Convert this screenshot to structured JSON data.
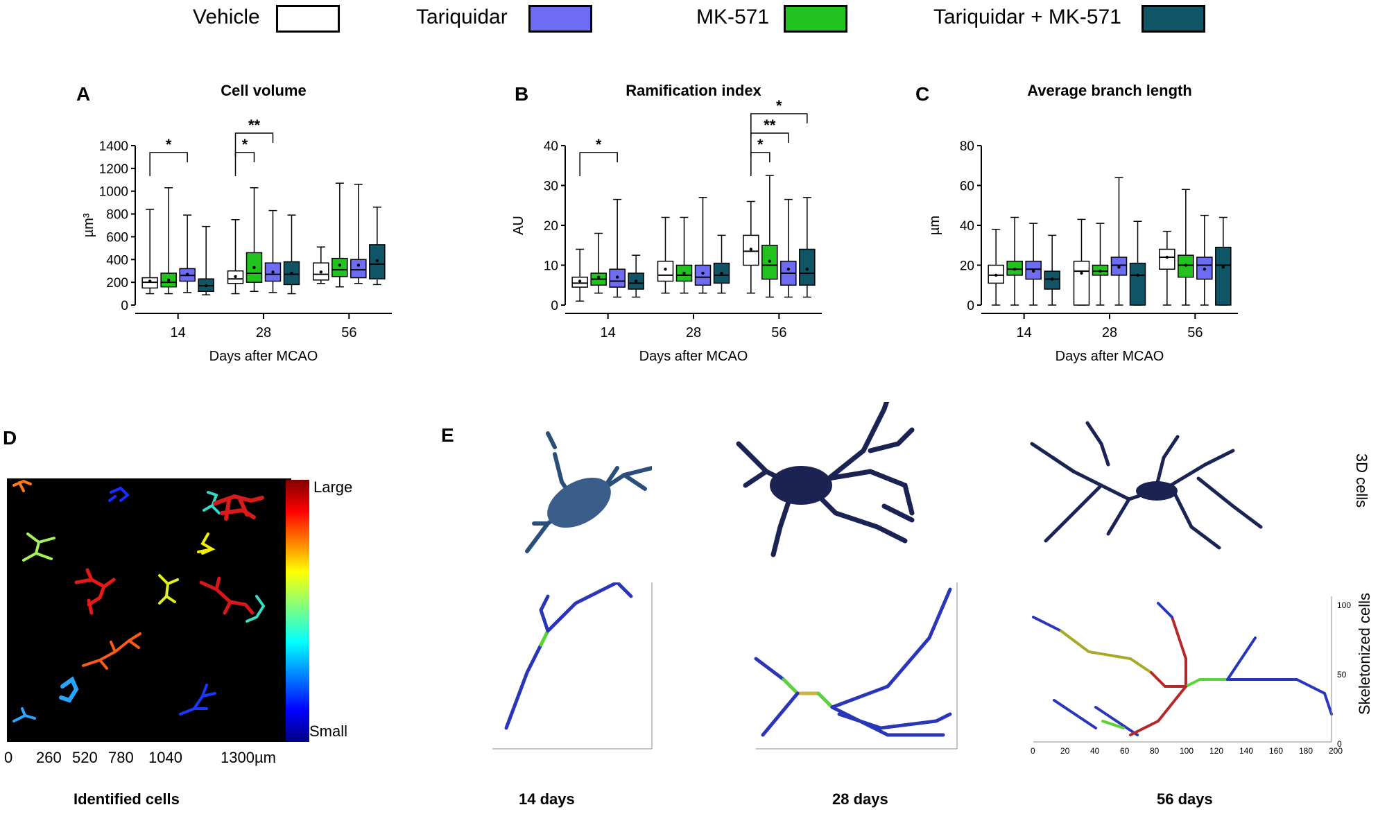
{
  "legend": [
    {
      "label": "Vehicle",
      "color": "#ffffff"
    },
    {
      "label": "Tariquidar",
      "color": "#6f6cf4"
    },
    {
      "label": "MK-571",
      "color": "#22c21f"
    },
    {
      "label": "Tariquidar + MK-571",
      "color": "#0f5566"
    }
  ],
  "panels": {
    "a": "A",
    "b": "B",
    "c": "C",
    "d": "D",
    "e": "E"
  },
  "chart_data": [
    {
      "id": "cell-volume",
      "type": "box",
      "title": "Cell volume",
      "xlabel": "Days after MCAO",
      "ylabel": "µm³",
      "ylim": [
        0,
        1400
      ],
      "yticks": [
        0,
        200,
        400,
        600,
        800,
        1000,
        1200,
        1400
      ],
      "categories": [
        "14",
        "28",
        "56"
      ],
      "series": [
        {
          "name": "Vehicle",
          "color": "#ffffff",
          "boxes": [
            {
              "min": 100,
              "q1": 150,
              "median": 200,
              "q3": 240,
              "max": 840,
              "mean": 210
            },
            {
              "min": 100,
              "q1": 190,
              "median": 230,
              "q3": 300,
              "max": 750,
              "mean": 250
            },
            {
              "min": 190,
              "q1": 220,
              "median": 270,
              "q3": 370,
              "max": 510,
              "mean": 290
            }
          ]
        },
        {
          "name": "MK-571",
          "color": "#22c21f",
          "boxes": [
            {
              "min": 100,
              "q1": 160,
              "median": 200,
              "q3": 280,
              "max": 1030,
              "mean": 220
            },
            {
              "min": 120,
              "q1": 200,
              "median": 280,
              "q3": 460,
              "max": 1030,
              "mean": 330
            },
            {
              "min": 160,
              "q1": 250,
              "median": 310,
              "q3": 410,
              "max": 1070,
              "mean": 350
            }
          ]
        },
        {
          "name": "Tariquidar",
          "color": "#6f6cf4",
          "boxes": [
            {
              "min": 110,
              "q1": 210,
              "median": 260,
              "q3": 320,
              "max": 790,
              "mean": 270
            },
            {
              "min": 110,
              "q1": 210,
              "median": 270,
              "q3": 370,
              "max": 830,
              "mean": 290
            },
            {
              "min": 190,
              "q1": 240,
              "median": 310,
              "q3": 400,
              "max": 1060,
              "mean": 350
            }
          ]
        },
        {
          "name": "Tariquidar + MK-571",
          "color": "#0f5566",
          "boxes": [
            {
              "min": 90,
              "q1": 120,
              "median": 170,
              "q3": 230,
              "max": 690,
              "mean": 170
            },
            {
              "min": 100,
              "q1": 180,
              "median": 270,
              "q3": 380,
              "max": 790,
              "mean": 280
            },
            {
              "min": 180,
              "q1": 230,
              "median": 360,
              "q3": 530,
              "max": 860,
              "mean": 390
            }
          ]
        }
      ],
      "significance": [
        {
          "group": 0,
          "from": 0,
          "to": 2,
          "label": "*",
          "level": 1
        },
        {
          "group": 1,
          "from": 0,
          "to": 1,
          "label": "*",
          "level": 1
        },
        {
          "group": 1,
          "from": 0,
          "to": 2,
          "label": "**",
          "level": 2
        }
      ]
    },
    {
      "id": "ramification-index",
      "type": "box",
      "title": "Ramification index",
      "xlabel": "Days after MCAO",
      "ylabel": "AU",
      "ylim": [
        0,
        40
      ],
      "yticks": [
        0,
        10,
        20,
        30,
        40
      ],
      "categories": [
        "14",
        "28",
        "56"
      ],
      "series": [
        {
          "name": "Vehicle",
          "color": "#ffffff",
          "boxes": [
            {
              "min": 1,
              "q1": 4.5,
              "median": 5.5,
              "q3": 7,
              "max": 14,
              "mean": 6
            },
            {
              "min": 3,
              "q1": 6,
              "median": 7.5,
              "q3": 11,
              "max": 22,
              "mean": 9
            },
            {
              "min": 3,
              "q1": 10,
              "median": 13.5,
              "q3": 17.5,
              "max": 26,
              "mean": 14
            }
          ]
        },
        {
          "name": "MK-571",
          "color": "#22c21f",
          "boxes": [
            {
              "min": 3,
              "q1": 5,
              "median": 6.5,
              "q3": 8,
              "max": 18,
              "mean": 7
            },
            {
              "min": 3,
              "q1": 6,
              "median": 7.5,
              "q3": 10,
              "max": 22,
              "mean": 8
            },
            {
              "min": 2,
              "q1": 6.5,
              "median": 10,
              "q3": 15,
              "max": 32.5,
              "mean": 11
            }
          ]
        },
        {
          "name": "Tariquidar",
          "color": "#6f6cf4",
          "boxes": [
            {
              "min": 2,
              "q1": 4.5,
              "median": 6,
              "q3": 9,
              "max": 26.5,
              "mean": 7
            },
            {
              "min": 3,
              "q1": 5,
              "median": 7,
              "q3": 10,
              "max": 27,
              "mean": 8
            },
            {
              "min": 2,
              "q1": 5,
              "median": 8,
              "q3": 11,
              "max": 26.5,
              "mean": 9
            }
          ]
        },
        {
          "name": "Tariquidar + MK-571",
          "color": "#0f5566",
          "boxes": [
            {
              "min": 2,
              "q1": 4,
              "median": 5.5,
              "q3": 8,
              "max": 12.5,
              "mean": 6
            },
            {
              "min": 3,
              "q1": 5.5,
              "median": 7.5,
              "q3": 10.5,
              "max": 17.5,
              "mean": 8
            },
            {
              "min": 2,
              "q1": 5,
              "median": 8,
              "q3": 14,
              "max": 27,
              "mean": 9
            }
          ]
        }
      ],
      "significance": [
        {
          "group": 0,
          "from": 0,
          "to": 2,
          "label": "*",
          "level": 1
        },
        {
          "group": 2,
          "from": 0,
          "to": 1,
          "label": "*",
          "level": 1
        },
        {
          "group": 2,
          "from": 0,
          "to": 2,
          "label": "**",
          "level": 2
        },
        {
          "group": 2,
          "from": 0,
          "to": 3,
          "label": "*",
          "level": 3
        }
      ]
    },
    {
      "id": "average-branch-length",
      "type": "box",
      "title": "Average branch length",
      "xlabel": "Days after MCAO",
      "ylabel": "µm",
      "ylim": [
        0,
        80
      ],
      "yticks": [
        0,
        20,
        40,
        60,
        80
      ],
      "categories": [
        "14",
        "28",
        "56"
      ],
      "series": [
        {
          "name": "Vehicle",
          "color": "#ffffff",
          "boxes": [
            {
              "min": 0,
              "q1": 11,
              "median": 15,
              "q3": 20,
              "max": 38,
              "mean": 15
            },
            {
              "min": 0,
              "q1": 0,
              "median": 17,
              "q3": 22,
              "max": 43,
              "mean": 16
            },
            {
              "min": 0,
              "q1": 18,
              "median": 24,
              "q3": 28,
              "max": 37,
              "mean": 24
            }
          ]
        },
        {
          "name": "MK-571",
          "color": "#22c21f",
          "boxes": [
            {
              "min": 0,
              "q1": 15,
              "median": 18,
              "q3": 22,
              "max": 44,
              "mean": 18
            },
            {
              "min": 0,
              "q1": 15,
              "median": 17,
              "q3": 20,
              "max": 41,
              "mean": 17
            },
            {
              "min": 0,
              "q1": 14,
              "median": 20,
              "q3": 25,
              "max": 58,
              "mean": 20
            }
          ]
        },
        {
          "name": "Tariquidar",
          "color": "#6f6cf4",
          "boxes": [
            {
              "min": 0,
              "q1": 13,
              "median": 18,
              "q3": 22,
              "max": 41,
              "mean": 17
            },
            {
              "min": 0,
              "q1": 15,
              "median": 20,
              "q3": 24,
              "max": 64,
              "mean": 19
            },
            {
              "min": 0,
              "q1": 13,
              "median": 20,
              "q3": 24,
              "max": 45,
              "mean": 18
            }
          ]
        },
        {
          "name": "Tariquidar + MK-571",
          "color": "#0f5566",
          "boxes": [
            {
              "min": 0,
              "q1": 8,
              "median": 13,
              "q3": 17,
              "max": 35,
              "mean": 13
            },
            {
              "min": 0,
              "q1": 0,
              "median": 15,
              "q3": 21,
              "max": 42,
              "mean": 15
            },
            {
              "min": 0,
              "q1": 0,
              "median": 20,
              "q3": 29,
              "max": 44,
              "mean": 19
            }
          ]
        }
      ],
      "significance": []
    }
  ],
  "panel_d": {
    "xticks": [
      "0",
      "260",
      "520",
      "780",
      "1040",
      "1300µm"
    ],
    "scale_top": "Large",
    "scale_bottom": "Small",
    "caption": "Identified cells"
  },
  "panel_e": {
    "row_labels": [
      "3D cells",
      "Skeletonized cells"
    ],
    "captions": [
      "14 days",
      "28 days",
      "56 days"
    ],
    "skel3_yticks": [
      "0",
      "50",
      "100"
    ],
    "skel3_xticks": [
      "0",
      "20",
      "40",
      "60",
      "80",
      "100",
      "120",
      "140",
      "160",
      "180",
      "200"
    ]
  }
}
